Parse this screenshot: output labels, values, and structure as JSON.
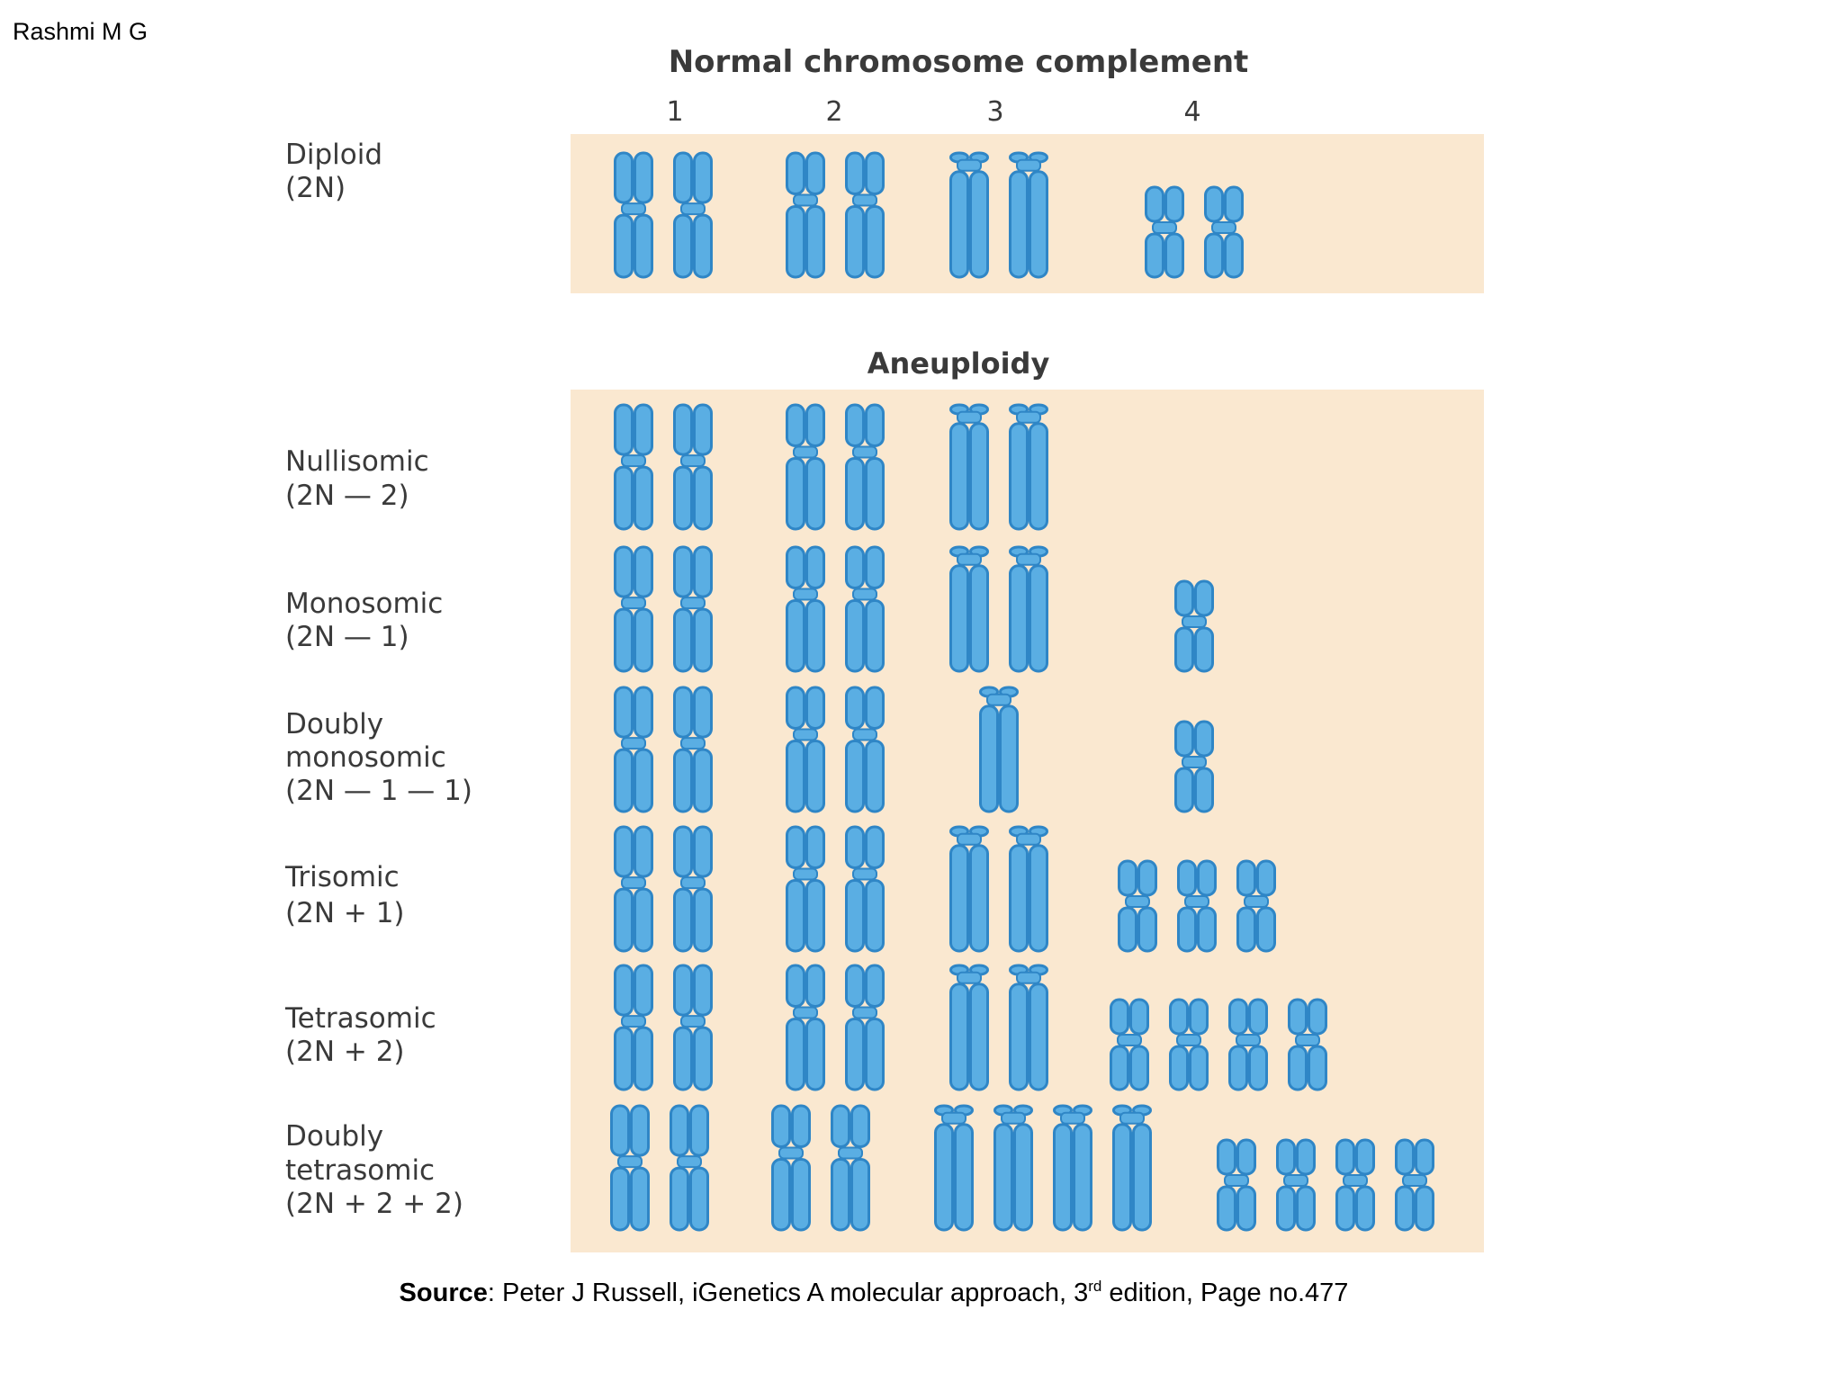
{
  "author": "Rashmi M G",
  "figure": {
    "title": "Normal chromosome complement",
    "columns": [
      "1",
      "2",
      "3",
      "4"
    ],
    "diploid": {
      "label_lines": [
        "Diploid",
        "(2N)"
      ]
    },
    "section_title": "Aneuploidy",
    "rows": [
      {
        "label_lines": [
          "Nullisomic",
          "(2N — 2)"
        ]
      },
      {
        "label_lines": [
          "Monosomic",
          "(2N — 1)"
        ]
      },
      {
        "label_lines": [
          "Doubly",
          "monosomic",
          "(2N — 1 — 1)"
        ]
      },
      {
        "label_lines": [
          "Trisomic",
          "(2N + 1)"
        ]
      },
      {
        "label_lines": [
          "Tetrasomic",
          "(2N + 2)"
        ]
      },
      {
        "label_lines": [
          "Doubly",
          "tetrasomic",
          "(2N + 2 + 2)"
        ]
      }
    ]
  },
  "source": {
    "label": "Source",
    "text1": ": Peter J Russell, iGenetics A molecular approach, 3",
    "sup": "rd",
    "text2": " edition, Page no.477"
  }
}
